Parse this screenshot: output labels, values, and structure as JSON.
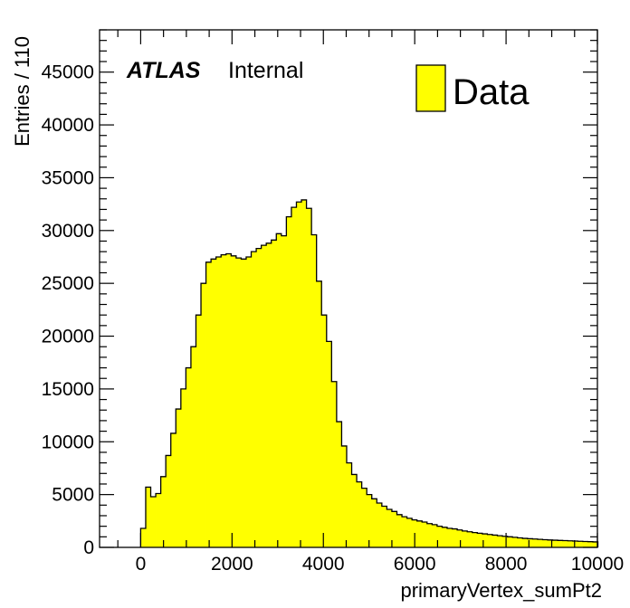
{
  "chart_data": {
    "type": "bar",
    "histogram": true,
    "xlabel": "primaryVertex_sumPt2",
    "ylabel": "Entries / 110",
    "xlim": [
      -900,
      10000
    ],
    "ylim": [
      0,
      49000
    ],
    "x_ticks": [
      0,
      2000,
      4000,
      6000,
      8000,
      10000
    ],
    "y_ticks": [
      0,
      5000,
      10000,
      15000,
      20000,
      25000,
      30000,
      35000,
      40000,
      45000
    ],
    "bin_width": 110,
    "bin_start": 0,
    "grid": false,
    "legend_position": "top-right",
    "labels": {
      "atlas": "ATLAS",
      "internal": "Internal"
    },
    "series": [
      {
        "name": "Data",
        "color": "#ffff00",
        "edge_color": "#000000",
        "values": [
          1800,
          5700,
          4800,
          5100,
          6700,
          8700,
          10800,
          13100,
          15000,
          17000,
          19000,
          22000,
          25000,
          27000,
          27300,
          27500,
          27700,
          27800,
          27600,
          27400,
          27300,
          27500,
          28000,
          28300,
          28600,
          28800,
          29100,
          29700,
          29500,
          31300,
          32200,
          32700,
          32900,
          32100,
          29600,
          25200,
          22000,
          19500,
          15700,
          11900,
          9600,
          8000,
          6900,
          6200,
          5600,
          5000,
          4600,
          4200,
          3900,
          3600,
          3400,
          3100,
          2900,
          2750,
          2600,
          2500,
          2400,
          2250,
          2150,
          2000,
          1900,
          1800,
          1750,
          1650,
          1550,
          1480,
          1400,
          1340,
          1280,
          1220,
          1160,
          1100,
          1050,
          1000,
          950,
          900,
          850,
          820,
          790,
          760,
          730,
          700,
          680,
          660,
          640,
          620,
          600,
          580,
          560,
          540,
          520
        ]
      }
    ]
  }
}
